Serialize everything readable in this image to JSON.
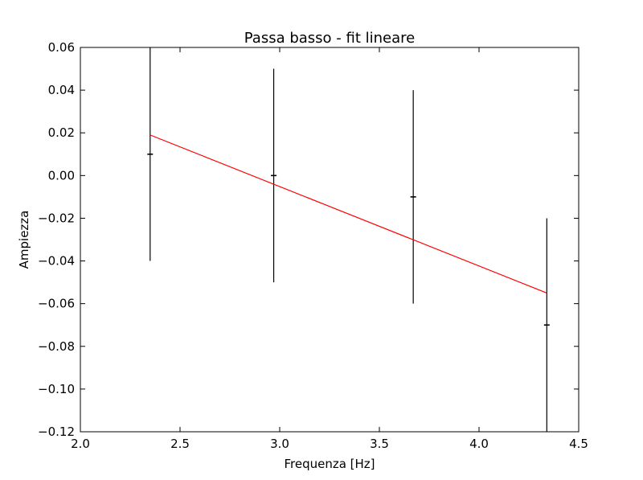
{
  "chart_data": {
    "type": "scatter",
    "title": "Passa basso - fit lineare",
    "xlabel": "Frequenza [Hz]",
    "ylabel": "Ampiezza",
    "xlim": [
      2.0,
      4.5
    ],
    "ylim": [
      -0.12,
      0.06
    ],
    "grid": false,
    "x_ticks": [
      2.0,
      2.5,
      3.0,
      3.5,
      4.0,
      4.5
    ],
    "x_tick_labels": [
      "2.0",
      "2.5",
      "3.0",
      "3.5",
      "4.0",
      "4.5"
    ],
    "y_ticks": [
      -0.12,
      -0.1,
      -0.08,
      -0.06,
      -0.04,
      -0.02,
      0.0,
      0.02,
      0.04,
      0.06
    ],
    "y_tick_labels": [
      "−0.12",
      "−0.10",
      "−0.08",
      "−0.06",
      "−0.04",
      "−0.02",
      "0.00",
      "0.02",
      "0.04",
      "0.06"
    ],
    "series": [
      {
        "type": "errorbar",
        "color": "#000000",
        "points": [
          {
            "x": 2.35,
            "y": 0.01,
            "yerr": 0.05
          },
          {
            "x": 2.97,
            "y": 0.0,
            "yerr": 0.05
          },
          {
            "x": 3.67,
            "y": -0.01,
            "yerr": 0.05
          },
          {
            "x": 4.34,
            "y": -0.07,
            "yerr": 0.05
          }
        ]
      },
      {
        "type": "line",
        "color": "#ff0000",
        "x": [
          2.35,
          4.34
        ],
        "y": [
          0.019,
          -0.055
        ]
      }
    ]
  }
}
